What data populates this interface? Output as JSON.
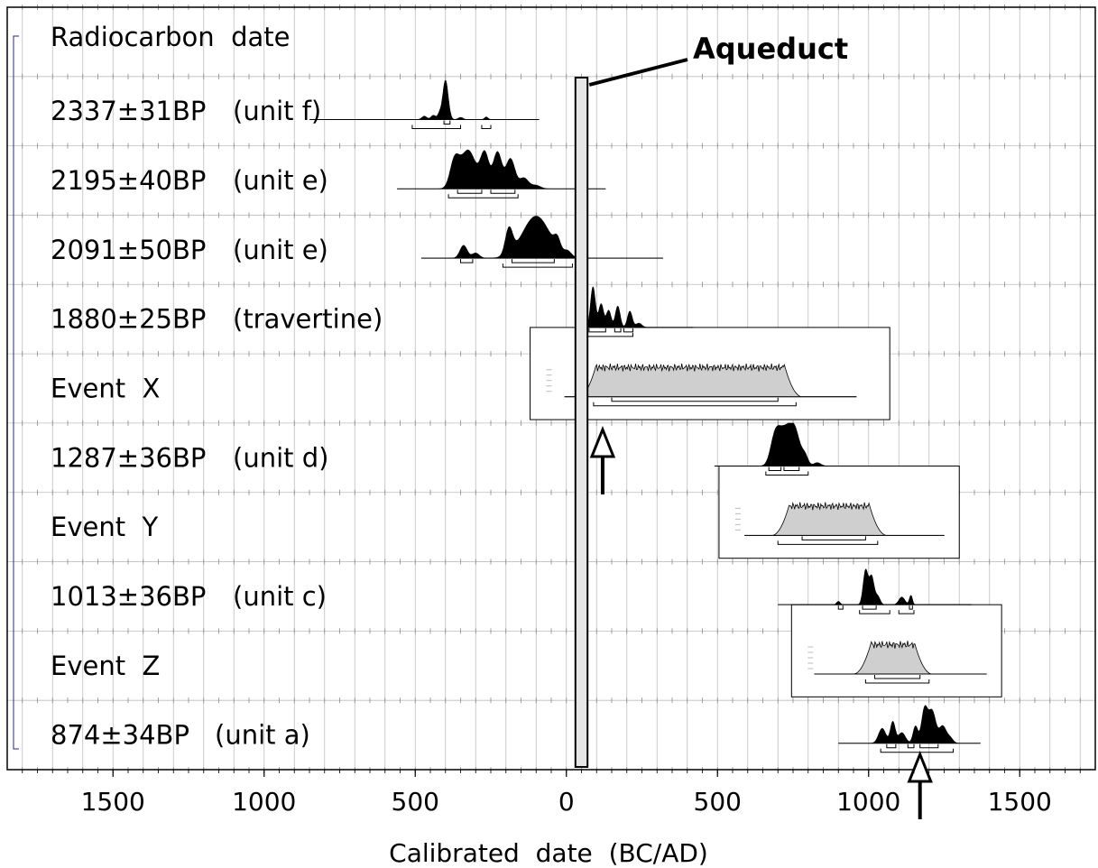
{
  "chart_data": {
    "type": "area",
    "title": "",
    "column_header": "Radiocarbon  date",
    "annotation": "Aqueduct",
    "aqueduct_range": [
      30,
      70
    ],
    "xlabel": "Calibrated  date  (BC/AD)",
    "xlim": [
      -1850,
      1750
    ],
    "xticks": [
      {
        "value": -1500,
        "label": "1500"
      },
      {
        "value": -1000,
        "label": "1000"
      },
      {
        "value": -500,
        "label": "500"
      },
      {
        "value": 0,
        "label": "0"
      },
      {
        "value": 500,
        "label": "500"
      },
      {
        "value": 1000,
        "label": "1000"
      },
      {
        "value": 1500,
        "label": "1500"
      }
    ],
    "grid": true,
    "rows": [
      {
        "id": "unit-f",
        "date": "2337±31BP",
        "context": "(unit f)",
        "kind": "sample",
        "range": [
          -850,
          -90
        ],
        "peaks": [
          [
            -400,
            0.92,
            9
          ],
          [
            -470,
            0.08,
            8
          ],
          [
            -440,
            0.1,
            8
          ],
          [
            -420,
            0.12,
            6
          ],
          [
            -350,
            0.05,
            8
          ],
          [
            -265,
            0.06,
            6
          ]
        ],
        "brackets": [
          [
            -510,
            -350
          ],
          [
            -280,
            -250
          ]
        ],
        "sub_brackets": [
          [
            -405,
            -385
          ]
        ]
      },
      {
        "id": "unit-e-1",
        "date": "2195±40BP",
        "context": "(unit e)",
        "kind": "sample",
        "range": [
          -560,
          130
        ],
        "peaks": [
          [
            -370,
            0.6,
            15
          ],
          [
            -325,
            0.9,
            25
          ],
          [
            -270,
            0.8,
            14
          ],
          [
            -228,
            0.85,
            14
          ],
          [
            -185,
            0.7,
            15
          ],
          [
            -140,
            0.25,
            15
          ],
          [
            -100,
            0.08,
            15
          ]
        ],
        "brackets": [
          [
            -390,
            -160
          ]
        ],
        "sub_brackets": [
          [
            -360,
            -280
          ],
          [
            -250,
            -170
          ]
        ]
      },
      {
        "id": "unit-e-2",
        "date": "2091±50BP",
        "context": "(unit e)",
        "kind": "sample",
        "range": [
          -480,
          320
        ],
        "peaks": [
          [
            -340,
            0.3,
            12
          ],
          [
            -300,
            0.12,
            12
          ],
          [
            -190,
            0.6,
            12
          ],
          [
            -100,
            0.98,
            45
          ],
          [
            -30,
            0.25,
            10
          ],
          [
            5,
            0.12,
            12
          ]
        ],
        "brackets": [
          [
            -210,
            20
          ]
        ],
        "sub_brackets": [
          [
            -350,
            -310
          ],
          [
            -180,
            -40
          ]
        ]
      },
      {
        "id": "travertine",
        "date": "1880±25BP",
        "context": "(travertine)",
        "kind": "sample",
        "range": [
          60,
          420
        ],
        "peaks": [
          [
            88,
            0.95,
            8
          ],
          [
            115,
            0.55,
            8
          ],
          [
            140,
            0.4,
            8
          ],
          [
            170,
            0.5,
            8
          ],
          [
            210,
            0.38,
            8
          ],
          [
            240,
            0.1,
            10
          ]
        ],
        "brackets": [
          [
            70,
            220
          ]
        ],
        "sub_brackets": [
          [
            75,
            130
          ],
          [
            160,
            180
          ],
          [
            190,
            220
          ]
        ]
      },
      {
        "id": "event-x",
        "date": "Event  X",
        "context": "",
        "kind": "event",
        "range": [
          -5,
          960
        ],
        "inset": [
          -120,
          1070
        ],
        "plateau": [
          100,
          720
        ],
        "brackets": [
          [
            90,
            760
          ]
        ],
        "sub_brackets": [
          [
            150,
            700
          ]
        ]
      },
      {
        "id": "unit-d",
        "date": "1287±36BP",
        "context": "(unit d)",
        "kind": "sample",
        "range": [
          490,
          1070
        ],
        "peaks": [
          [
            690,
            0.6,
            15
          ],
          [
            720,
            0.75,
            20
          ],
          [
            755,
            0.8,
            18
          ],
          [
            790,
            0.2,
            10
          ],
          [
            830,
            0.08,
            12
          ]
        ],
        "brackets": [
          [
            660,
            800
          ]
        ],
        "sub_brackets": [
          [
            670,
            710
          ],
          [
            720,
            770
          ]
        ]
      },
      {
        "id": "event-y",
        "date": "Event  Y",
        "context": "",
        "kind": "event",
        "range": [
          590,
          1250
        ],
        "inset": [
          505,
          1300
        ],
        "plateau": [
          740,
          1000
        ],
        "brackets": [
          [
            700,
            1030
          ]
        ],
        "sub_brackets": [
          [
            780,
            990
          ]
        ]
      },
      {
        "id": "unit-c",
        "date": "1013±36BP",
        "context": "(unit c)",
        "kind": "sample",
        "range": [
          700,
          1340
        ],
        "peaks": [
          [
            900,
            0.08,
            6
          ],
          [
            990,
            0.8,
            8
          ],
          [
            1010,
            0.65,
            8
          ],
          [
            1030,
            0.2,
            8
          ],
          [
            1110,
            0.18,
            10
          ],
          [
            1140,
            0.22,
            5
          ]
        ],
        "brackets": [
          [
            970,
            1070
          ],
          [
            1100,
            1150
          ]
        ],
        "sub_brackets": [
          [
            900,
            915
          ],
          [
            980,
            1025
          ],
          [
            1135,
            1145
          ]
        ]
      },
      {
        "id": "event-z",
        "date": "Event  Z",
        "context": "",
        "kind": "event",
        "range": [
          820,
          1390
        ],
        "inset": [
          745,
          1440
        ],
        "plateau": [
          1010,
          1150
        ],
        "brackets": [
          [
            990,
            1200
          ]
        ],
        "sub_brackets": [
          [
            1020,
            1170
          ]
        ]
      },
      {
        "id": "unit-a",
        "date": "874±34BP",
        "context": "(unit a)",
        "kind": "sample",
        "range": [
          900,
          1370
        ],
        "peaks": [
          [
            1045,
            0.35,
            12
          ],
          [
            1080,
            0.5,
            8
          ],
          [
            1110,
            0.25,
            12
          ],
          [
            1155,
            0.4,
            8
          ],
          [
            1185,
            0.78,
            10
          ],
          [
            1210,
            0.75,
            12
          ],
          [
            1245,
            0.4,
            12
          ],
          [
            1270,
            0.12,
            10
          ]
        ],
        "brackets": [
          [
            1040,
            1280
          ]
        ],
        "sub_brackets": [
          [
            1060,
            1090
          ],
          [
            1130,
            1150
          ],
          [
            1170,
            1230
          ]
        ]
      }
    ],
    "markers": [
      {
        "id": "arrow-x",
        "value": 120,
        "row": "event-x"
      },
      {
        "id": "arrow-z",
        "value": 1170,
        "row": "unit-a"
      }
    ]
  }
}
